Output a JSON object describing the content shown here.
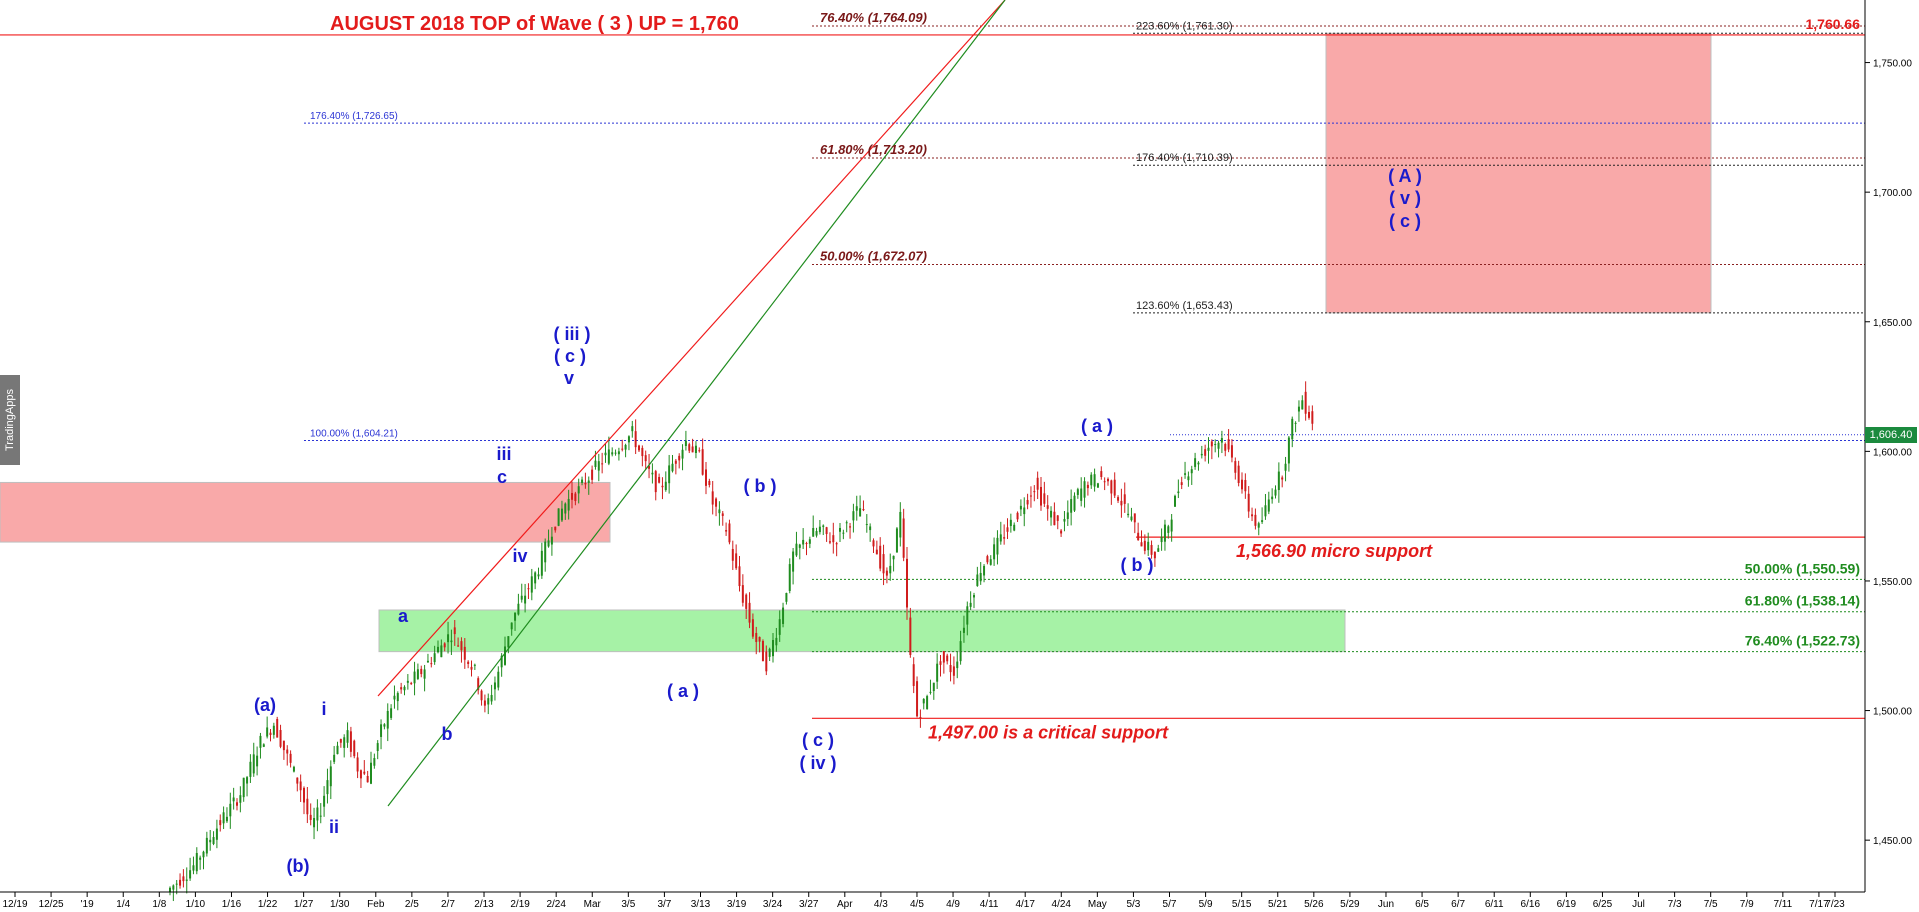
{
  "brand": "TradingApps",
  "last_price_tag": "1,606.40",
  "chart_data": {
    "type": "candlestick",
    "price_axis": {
      "ylim": [
        1430,
        1781
      ],
      "ticks": [
        1450,
        1500,
        1550,
        1600,
        1650,
        1700,
        1750
      ],
      "tick_labels": [
        "1,450.00",
        "1,500.00",
        "1,550.00",
        "1,600.00",
        "1,650.00",
        "1,700.00",
        "1,750.00"
      ]
    },
    "x_axis": {
      "tick_labels": [
        "12/19",
        "12/25",
        "'19",
        "1/4",
        "1/8",
        "1/10",
        "1/16",
        "1/22",
        "1/27",
        "1/30",
        "Feb",
        "2/5",
        "2/7",
        "2/13",
        "2/19",
        "2/24",
        "Mar",
        "3/5",
        "3/7",
        "3/13",
        "3/19",
        "3/24",
        "3/27",
        "Apr",
        "4/3",
        "4/5",
        "4/9",
        "4/11",
        "4/17",
        "4/24",
        "May",
        "5/3",
        "5/7",
        "5/9",
        "5/15",
        "5/21",
        "5/26",
        "5/29",
        "Jun",
        "6/5",
        "6/7",
        "6/11",
        "6/16",
        "6/19",
        "6/25",
        "Jul",
        "7/3",
        "7/5",
        "7/9",
        "7/11",
        "7/17",
        "7/23"
      ]
    },
    "price_path": [
      [
        0,
        1430
      ],
      [
        8,
        1440
      ],
      [
        15,
        1455
      ],
      [
        22,
        1468
      ],
      [
        28,
        1488
      ],
      [
        32,
        1495
      ],
      [
        36,
        1482
      ],
      [
        40,
        1470
      ],
      [
        43,
        1455
      ],
      [
        46,
        1462
      ],
      [
        50,
        1485
      ],
      [
        54,
        1490
      ],
      [
        57,
        1478
      ],
      [
        60,
        1474
      ],
      [
        64,
        1492
      ],
      [
        68,
        1505
      ],
      [
        72,
        1510
      ],
      [
        76,
        1515
      ],
      [
        80,
        1522
      ],
      [
        85,
        1530
      ],
      [
        88,
        1524
      ],
      [
        92,
        1515
      ],
      [
        95,
        1500
      ],
      [
        99,
        1515
      ],
      [
        103,
        1535
      ],
      [
        107,
        1545
      ],
      [
        111,
        1555
      ],
      [
        115,
        1570
      ],
      [
        119,
        1580
      ],
      [
        123,
        1585
      ],
      [
        127,
        1592
      ],
      [
        131,
        1598
      ],
      [
        135,
        1602
      ],
      [
        139,
        1607
      ],
      [
        143,
        1594
      ],
      [
        147,
        1585
      ],
      [
        151,
        1595
      ],
      [
        155,
        1604
      ],
      [
        159,
        1598
      ],
      [
        163,
        1580
      ],
      [
        167,
        1570
      ],
      [
        171,
        1548
      ],
      [
        175,
        1530
      ],
      [
        179,
        1518
      ],
      [
        183,
        1535
      ],
      [
        187,
        1560
      ],
      [
        191,
        1566
      ],
      [
        195,
        1570
      ],
      [
        199,
        1565
      ],
      [
        203,
        1572
      ],
      [
        207,
        1578
      ],
      [
        211,
        1565
      ],
      [
        215,
        1550
      ],
      [
        219,
        1575
      ],
      [
        222,
        1520
      ],
      [
        224,
        1498
      ],
      [
        227,
        1505
      ],
      [
        231,
        1520
      ],
      [
        235,
        1515
      ],
      [
        239,
        1540
      ],
      [
        243,
        1555
      ],
      [
        247,
        1562
      ],
      [
        251,
        1570
      ],
      [
        255,
        1578
      ],
      [
        259,
        1587
      ],
      [
        263,
        1577
      ],
      [
        267,
        1570
      ],
      [
        271,
        1582
      ],
      [
        275,
        1588
      ],
      [
        279,
        1590
      ],
      [
        283,
        1585
      ],
      [
        287,
        1576
      ],
      [
        291,
        1565
      ],
      [
        295,
        1560
      ],
      [
        299,
        1572
      ],
      [
        303,
        1590
      ],
      [
        307,
        1596
      ],
      [
        311,
        1602
      ],
      [
        315,
        1605
      ],
      [
        319,
        1594
      ],
      [
        323,
        1578
      ],
      [
        326,
        1570
      ],
      [
        330,
        1585
      ],
      [
        333,
        1592
      ],
      [
        336,
        1610
      ],
      [
        339,
        1620
      ],
      [
        342,
        1612
      ]
    ],
    "label_colors": {
      "wave": "#1a1acc",
      "title": "#e31b1b",
      "support": "#e31b1b",
      "fib_dark": "#7a1818",
      "fib_green": "#1f8c1f",
      "fib_blue": "#2b34d4",
      "fib_black": "#222222"
    },
    "title": "AUGUST 2018 TOP of Wave ( 3 ) UP = 1,760",
    "top_value": "1,760.66",
    "support_micro": "1,566.90 micro support",
    "support_critical": "1,497.00 is a critical support",
    "fib_levels": {
      "dark": [
        {
          "label": "76.40% (1,764.09)",
          "value": 1764.09
        },
        {
          "label": "61.80% (1,713.20)",
          "value": 1713.2
        },
        {
          "label": "50.00% (1,672.07)",
          "value": 1672.07
        }
      ],
      "black": [
        {
          "label": "223.60% (1,761.30)",
          "value": 1761.3
        },
        {
          "label": "176.40% (1,710.39)",
          "value": 1710.39
        },
        {
          "label": "123.60% (1,653.43)",
          "value": 1653.43
        }
      ],
      "blue": [
        {
          "label": "176.40% (1,726.65)",
          "value": 1726.65
        },
        {
          "label": "100.00% (1,604.21)",
          "value": 1604.21
        }
      ],
      "green": [
        {
          "label": "50.00% (1,550.59)",
          "value": 1550.59
        },
        {
          "label": "61.80% (1,538.14)",
          "value": 1538.14
        },
        {
          "label": "76.40% (1,522.73)",
          "value": 1522.73
        }
      ]
    },
    "zones": [
      {
        "name": "target-zone",
        "color": "#f9a9a9",
        "from": 1653.43,
        "to": 1761.3
      },
      {
        "name": "resistance-zone",
        "color": "#f9a9a9",
        "from": 1565,
        "to": 1588
      },
      {
        "name": "support-zone",
        "color": "#a6f2a6",
        "from": 1522.73,
        "to": 1538.8
      }
    ],
    "wave_labels": [
      "( iii )",
      "( c )",
      "v",
      "iii",
      "c",
      "iv",
      "a",
      "b",
      "(a)",
      "i",
      "ii",
      "(b)",
      "( b )",
      "( a )",
      "( c )",
      "( iv )",
      "( a )",
      "( b )",
      "( A )",
      "( v )",
      "( c )"
    ]
  }
}
